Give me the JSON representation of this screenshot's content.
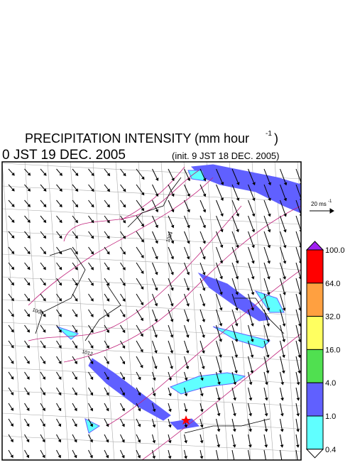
{
  "figure": {
    "title": "PRECIPITATION INTENSITY (mm hour",
    "title_sup": "-1",
    "title_end": ")",
    "valid_time": "0 JST 19 DEC. 2005",
    "init_time": "(init. 9 JST 18 DEC. 2005)",
    "reference_vector": {
      "label": "20 ms",
      "sup": "-1"
    },
    "contour_labels": [
      "1004",
      "1008",
      "1012"
    ],
    "colorbar": {
      "over_color": "#a020f0",
      "under_color": "#ffffff",
      "bands": [
        {
          "top": "100.0",
          "color": "#ff0000"
        },
        {
          "top": "64.0",
          "color": "#ffa040"
        },
        {
          "top": "32.0",
          "color": "#ffff60"
        },
        {
          "top": "16.0",
          "color": "#50e050"
        },
        {
          "top": "4.0",
          "color": "#6060ff"
        },
        {
          "top": "1.0",
          "color": "#60ffff"
        }
      ],
      "bottom": "0.4"
    }
  }
}
